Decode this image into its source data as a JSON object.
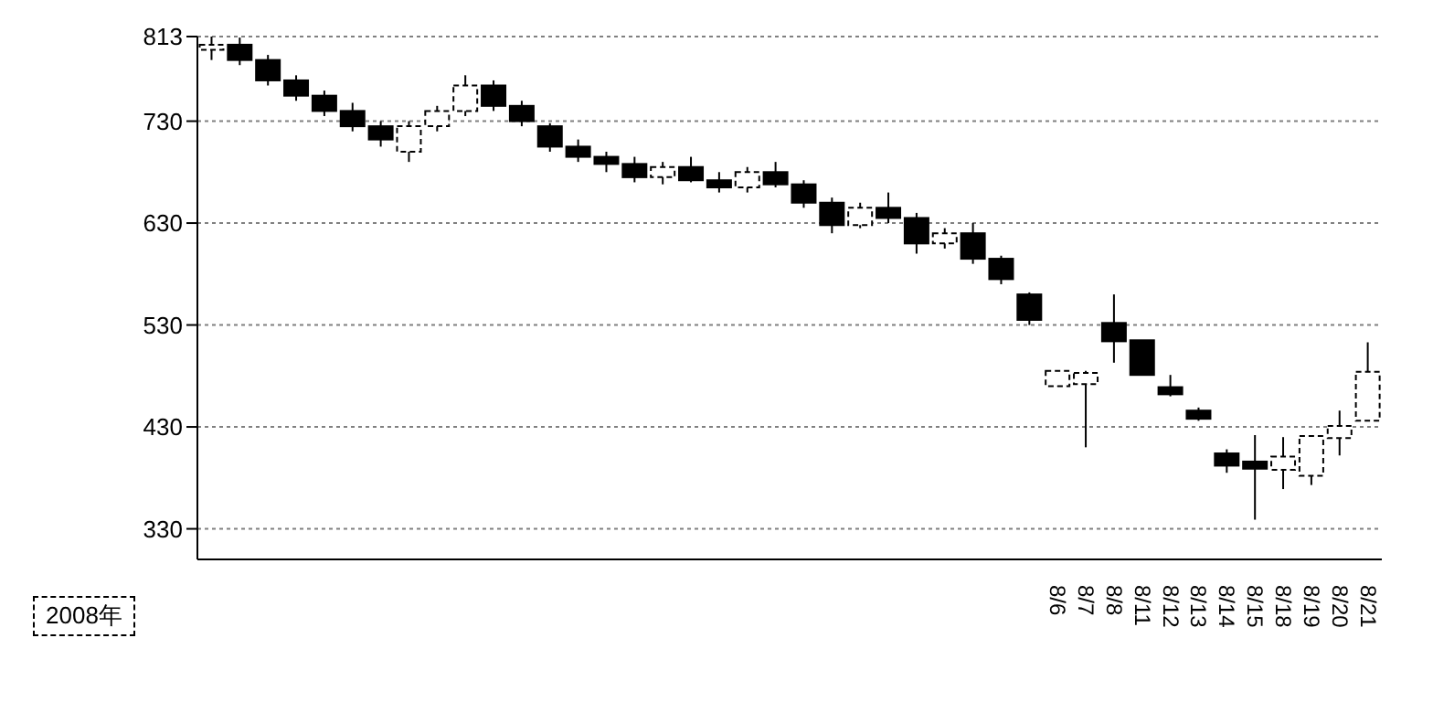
{
  "chart_data": {
    "type": "candlestick",
    "categories": [
      null,
      null,
      null,
      null,
      null,
      null,
      null,
      null,
      null,
      null,
      null,
      null,
      null,
      null,
      null,
      null,
      null,
      null,
      null,
      null,
      null,
      null,
      null,
      null,
      null,
      null,
      null,
      null,
      null,
      null,
      "8/6",
      "8/7",
      "8/8",
      "8/11",
      "8/12",
      "8/13",
      "8/14",
      "8/15",
      "8/18",
      "8/19",
      "8/20",
      "8/21"
    ],
    "ohlc": [
      [
        800,
        813,
        790,
        805
      ],
      [
        805,
        812,
        785,
        790
      ],
      [
        790,
        795,
        765,
        770
      ],
      [
        770,
        775,
        750,
        755
      ],
      [
        755,
        760,
        735,
        740
      ],
      [
        740,
        748,
        720,
        725
      ],
      [
        725,
        730,
        705,
        712
      ],
      [
        700,
        730,
        690,
        725
      ],
      [
        725,
        745,
        720,
        740
      ],
      [
        740,
        775,
        735,
        765
      ],
      [
        765,
        770,
        740,
        745
      ],
      [
        745,
        750,
        725,
        730
      ],
      [
        725,
        728,
        700,
        705
      ],
      [
        705,
        712,
        690,
        695
      ],
      [
        695,
        700,
        680,
        688
      ],
      [
        688,
        695,
        670,
        675
      ],
      [
        675,
        690,
        668,
        685
      ],
      [
        685,
        695,
        670,
        672
      ],
      [
        672,
        680,
        660,
        665
      ],
      [
        665,
        685,
        660,
        680
      ],
      [
        680,
        690,
        665,
        668
      ],
      [
        668,
        672,
        645,
        650
      ],
      [
        650,
        655,
        620,
        628
      ],
      [
        628,
        650,
        625,
        645
      ],
      [
        645,
        660,
        630,
        635
      ],
      [
        635,
        640,
        600,
        610
      ],
      [
        610,
        625,
        605,
        620
      ],
      [
        620,
        630,
        590,
        595
      ],
      [
        595,
        598,
        570,
        575
      ],
      [
        560,
        562,
        530,
        535
      ],
      [
        470,
        485,
        470,
        485
      ],
      [
        472,
        485,
        410,
        483
      ],
      [
        532,
        560,
        493,
        514
      ],
      [
        515,
        515,
        481,
        481
      ],
      [
        469,
        481,
        460,
        462
      ],
      [
        446,
        449,
        436,
        438
      ],
      [
        404,
        408,
        385,
        392
      ],
      [
        396,
        422,
        339,
        389
      ],
      [
        388,
        420,
        369,
        401
      ],
      [
        382,
        422,
        373,
        421
      ],
      [
        419,
        446,
        402,
        431
      ],
      [
        436,
        513,
        436,
        484
      ]
    ],
    "color": "#000000",
    "ylim": [
      300,
      813
    ],
    "yticks": [
      813,
      730,
      630,
      530,
      430,
      330
    ],
    "grid": "y",
    "annotations": [
      "2008年"
    ]
  }
}
